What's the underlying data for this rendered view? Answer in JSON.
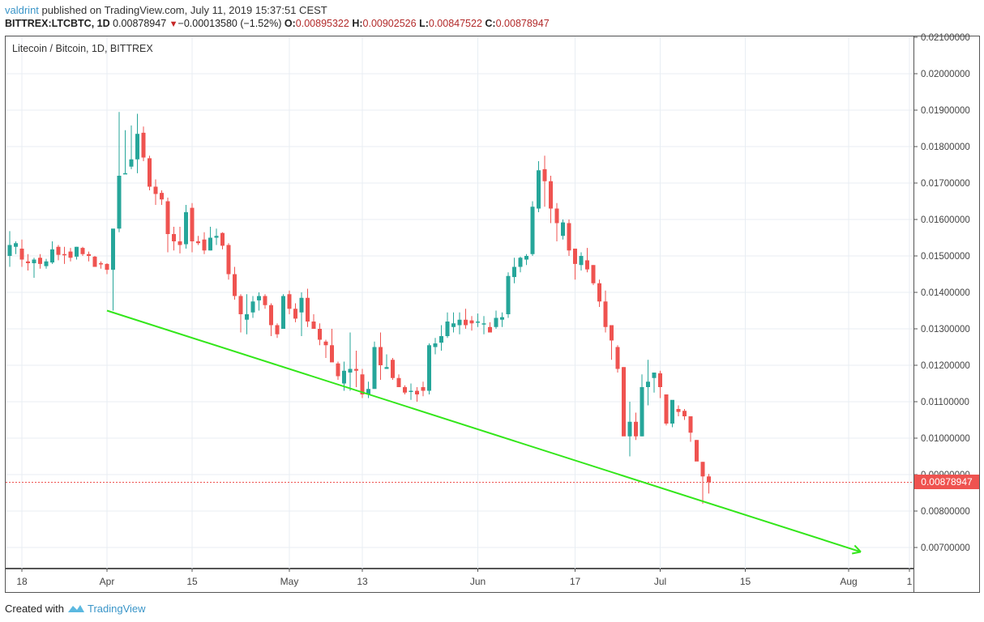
{
  "header": {
    "user": "valdrint",
    "published_text": " published on TradingView.com, July 11, 2019 15:37:51 CEST",
    "symbol": "BITTREX:LTCBTC, 1D",
    "last_price": "0.00878947",
    "change": "−0.00013580 (−1.52%)",
    "open_label": "O:",
    "open": "0.00895322",
    "high_label": "H:",
    "high": "0.00902526",
    "low_label": "L:",
    "low": "0.00847522",
    "close_label": "C:",
    "close": "0.00878947"
  },
  "legend": "Litecoin / Bitcoin, 1D, BITTREX",
  "footer": {
    "created_with": "Created with",
    "brand": "TradingView"
  },
  "colors": {
    "up": "#26a69a",
    "down": "#ef5350",
    "trendline": "#33e61a",
    "grid": "#e8eef3",
    "price_line": "#ef5350"
  },
  "chart_data": {
    "type": "candlestick",
    "title": "Litecoin / Bitcoin, 1D, BITTREX",
    "xlabel": "",
    "ylabel": "",
    "ylim": [
      0.0066,
      0.0211
    ],
    "y_ticks": [
      "0.02100000",
      "0.02000000",
      "0.01900000",
      "0.01800000",
      "0.01700000",
      "0.01600000",
      "0.01500000",
      "0.01400000",
      "0.01300000",
      "0.01200000",
      "0.01100000",
      "0.01000000",
      "0.00900000",
      "0.00800000",
      "0.00700000"
    ],
    "x_ticks": [
      {
        "label": "18",
        "day": 2
      },
      {
        "label": "Apr",
        "day": 16
      },
      {
        "label": "15",
        "day": 30
      },
      {
        "label": "May",
        "day": 46
      },
      {
        "label": "13",
        "day": 58
      },
      {
        "label": "Jun",
        "day": 77
      },
      {
        "label": "17",
        "day": 93
      },
      {
        "label": "Jul",
        "day": 107
      },
      {
        "label": "15",
        "day": 121
      },
      {
        "label": "Aug",
        "day": 138
      },
      {
        "label": "1",
        "day": 148
      }
    ],
    "start_date": "2019-03-16",
    "current_price": 0.00878947,
    "current_price_label": "0.00878947",
    "trendline": {
      "from": {
        "day": 16,
        "price": 0.0135
      },
      "to": {
        "day": 140,
        "price": 0.00688
      },
      "arrow": true
    },
    "ohlc": [
      [
        0.015,
        0.01568,
        0.0147,
        0.0153
      ],
      [
        0.01525,
        0.0154,
        0.01505,
        0.01535
      ],
      [
        0.0152,
        0.01545,
        0.0147,
        0.0149
      ],
      [
        0.01485,
        0.01505,
        0.0146,
        0.0148
      ],
      [
        0.0148,
        0.01495,
        0.0144,
        0.0149
      ],
      [
        0.01495,
        0.01505,
        0.01465,
        0.01478
      ],
      [
        0.01472,
        0.01492,
        0.01465,
        0.01485
      ],
      [
        0.01482,
        0.0154,
        0.01478,
        0.01518
      ],
      [
        0.01525,
        0.0153,
        0.01488,
        0.01503
      ],
      [
        0.01505,
        0.01525,
        0.01478,
        0.01502
      ],
      [
        0.01512,
        0.01522,
        0.01485,
        0.01495
      ],
      [
        0.01498,
        0.01525,
        0.0149,
        0.01525
      ],
      [
        0.01522,
        0.01525,
        0.015,
        0.01505
      ],
      [
        0.01505,
        0.01512,
        0.01485,
        0.015
      ],
      [
        0.01498,
        0.015,
        0.0147,
        0.0147
      ],
      [
        0.0148,
        0.01485,
        0.01465,
        0.01478
      ],
      [
        0.01478,
        0.0148,
        0.0145,
        0.01462
      ],
      [
        0.01462,
        0.01555,
        0.0135,
        0.01575
      ],
      [
        0.01575,
        0.01895,
        0.01565,
        0.0172
      ],
      [
        0.01724,
        0.01845,
        0.01725,
        0.01727
      ],
      [
        0.01745,
        0.01858,
        0.01738,
        0.01765
      ],
      [
        0.01765,
        0.0189,
        0.01727,
        0.01835
      ],
      [
        0.01838,
        0.01855,
        0.0176,
        0.0177
      ],
      [
        0.01768,
        0.01775,
        0.0168,
        0.0169
      ],
      [
        0.0169,
        0.0171,
        0.0164,
        0.0167
      ],
      [
        0.01673,
        0.0168,
        0.0164,
        0.01655
      ],
      [
        0.0165,
        0.0166,
        0.0151,
        0.0156
      ],
      [
        0.0156,
        0.0158,
        0.01515,
        0.0154
      ],
      [
        0.0154,
        0.0158,
        0.01507,
        0.0153
      ],
      [
        0.01532,
        0.0164,
        0.0152,
        0.0162
      ],
      [
        0.01632,
        0.01645,
        0.0151,
        0.0154
      ],
      [
        0.0154,
        0.01555,
        0.0153,
        0.01535
      ],
      [
        0.01545,
        0.01565,
        0.01505,
        0.01515
      ],
      [
        0.01515,
        0.0158,
        0.01515,
        0.0155
      ],
      [
        0.0155,
        0.01575,
        0.0153,
        0.01555
      ],
      [
        0.01563,
        0.01565,
        0.01518,
        0.01528
      ],
      [
        0.0153,
        0.01535,
        0.01435,
        0.0145
      ],
      [
        0.0145,
        0.0147,
        0.0138,
        0.0139
      ],
      [
        0.0139,
        0.01395,
        0.0129,
        0.0134
      ],
      [
        0.01325,
        0.01395,
        0.01285,
        0.0134
      ],
      [
        0.01345,
        0.0139,
        0.0133,
        0.01375
      ],
      [
        0.01378,
        0.014,
        0.0135,
        0.0139
      ],
      [
        0.0139,
        0.01395,
        0.01355,
        0.01365
      ],
      [
        0.01365,
        0.0137,
        0.0128,
        0.0131
      ],
      [
        0.0131,
        0.01315,
        0.01275,
        0.01285
      ],
      [
        0.013,
        0.01395,
        0.013,
        0.0139
      ],
      [
        0.01395,
        0.01405,
        0.0134,
        0.01355
      ],
      [
        0.01355,
        0.0137,
        0.01318,
        0.01328
      ],
      [
        0.01345,
        0.014,
        0.0128,
        0.01385
      ],
      [
        0.01385,
        0.0141,
        0.01305,
        0.0132
      ],
      [
        0.0132,
        0.0134,
        0.013,
        0.013
      ],
      [
        0.013,
        0.01315,
        0.01255,
        0.0127
      ],
      [
        0.01265,
        0.0127,
        0.0122,
        0.01255
      ],
      [
        0.01255,
        0.013,
        0.01235,
        0.01208
      ],
      [
        0.01205,
        0.0121,
        0.0116,
        0.0117
      ],
      [
        0.0115,
        0.0121,
        0.0113,
        0.01185
      ],
      [
        0.0118,
        0.0129,
        0.0113,
        0.0119
      ],
      [
        0.0119,
        0.0124,
        0.0114,
        0.01185
      ],
      [
        0.01175,
        0.0119,
        0.0111,
        0.0112
      ],
      [
        0.0112,
        0.01155,
        0.0111,
        0.01135
      ],
      [
        0.01135,
        0.01265,
        0.01145,
        0.0125
      ],
      [
        0.0125,
        0.0129,
        0.0116,
        0.012
      ],
      [
        0.0119,
        0.0123,
        0.0119,
        0.01195
      ],
      [
        0.01215,
        0.0122,
        0.0116,
        0.01165
      ],
      [
        0.01165,
        0.01175,
        0.0114,
        0.0114
      ],
      [
        0.0114,
        0.01145,
        0.0112,
        0.01125
      ],
      [
        0.0113,
        0.0115,
        0.01105,
        0.0113
      ],
      [
        0.0113,
        0.0114,
        0.011,
        0.0112
      ],
      [
        0.0114,
        0.01155,
        0.01115,
        0.0113
      ],
      [
        0.0113,
        0.0126,
        0.0112,
        0.01255
      ],
      [
        0.0125,
        0.01275,
        0.0123,
        0.0126
      ],
      [
        0.01262,
        0.0131,
        0.0124,
        0.0128
      ],
      [
        0.0128,
        0.01345,
        0.01275,
        0.0132
      ],
      [
        0.01305,
        0.01345,
        0.0129,
        0.01315
      ],
      [
        0.0131,
        0.01345,
        0.01285,
        0.01325
      ],
      [
        0.01325,
        0.01355,
        0.013,
        0.0131
      ],
      [
        0.01323,
        0.01335,
        0.01295,
        0.01315
      ],
      [
        0.01318,
        0.01342,
        0.01305,
        0.0132
      ],
      [
        0.01313,
        0.01335,
        0.01285,
        0.01315
      ],
      [
        0.01305,
        0.01318,
        0.0129,
        0.0129
      ],
      [
        0.01305,
        0.0135,
        0.013,
        0.0133
      ],
      [
        0.01325,
        0.01345,
        0.01305,
        0.01332
      ],
      [
        0.0134,
        0.01455,
        0.0133,
        0.01445
      ],
      [
        0.01442,
        0.01495,
        0.01425,
        0.0147
      ],
      [
        0.0147,
        0.01498,
        0.01455,
        0.01495
      ],
      [
        0.0149,
        0.01505,
        0.01475,
        0.015
      ],
      [
        0.01505,
        0.0165,
        0.015,
        0.01635
      ],
      [
        0.0163,
        0.0176,
        0.0162,
        0.01735
      ],
      [
        0.01738,
        0.01775,
        0.01635,
        0.01705
      ],
      [
        0.01705,
        0.0172,
        0.0159,
        0.0163
      ],
      [
        0.0163,
        0.01645,
        0.0154,
        0.0159
      ],
      [
        0.01555,
        0.016,
        0.01545,
        0.01592
      ],
      [
        0.0159,
        0.016,
        0.015,
        0.01515
      ],
      [
        0.0152,
        0.0152,
        0.01435,
        0.01478
      ],
      [
        0.01475,
        0.0151,
        0.0146,
        0.015
      ],
      [
        0.01488,
        0.01522,
        0.01455,
        0.01463
      ],
      [
        0.01475,
        0.01475,
        0.0142,
        0.01425
      ],
      [
        0.01425,
        0.01435,
        0.0136,
        0.01375
      ],
      [
        0.01375,
        0.01405,
        0.0129,
        0.01305
      ],
      [
        0.0131,
        0.0131,
        0.01215,
        0.01268
      ],
      [
        0.0125,
        0.01255,
        0.0118,
        0.0119
      ],
      [
        0.01195,
        0.01195,
        0.0104,
        0.01005
      ],
      [
        0.01005,
        0.011,
        0.0095,
        0.01045
      ],
      [
        0.01045,
        0.0107,
        0.00995,
        0.01005
      ],
      [
        0.01005,
        0.01175,
        0.01005,
        0.0114
      ],
      [
        0.0114,
        0.01215,
        0.0109,
        0.01155
      ],
      [
        0.01165,
        0.01175,
        0.01125,
        0.0118
      ],
      [
        0.01178,
        0.01185,
        0.0111,
        0.0114
      ],
      [
        0.0112,
        0.0112,
        0.01035,
        0.0104
      ],
      [
        0.0104,
        0.01065,
        0.0103,
        0.01105
      ],
      [
        0.0108,
        0.0109,
        0.0106,
        0.01072
      ],
      [
        0.01075,
        0.0108,
        0.0105,
        0.0106
      ],
      [
        0.0106,
        0.0106,
        0.0099,
        0.01015
      ],
      [
        0.00995,
        0.00995,
        0.00965,
        0.00936
      ],
      [
        0.00935,
        0.00935,
        0.0082,
        0.00895
      ],
      [
        0.00895,
        0.00902,
        0.00848,
        0.00879
      ]
    ]
  }
}
